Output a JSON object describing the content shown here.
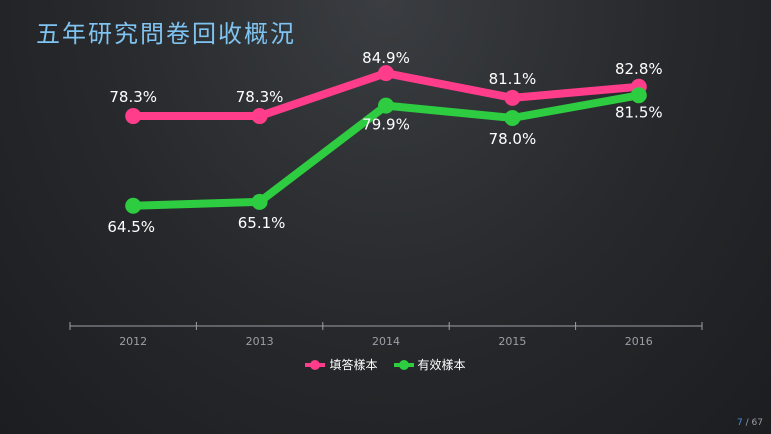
{
  "slide": {
    "title": "五年研究問卷回收概況",
    "page_current": "7",
    "page_total": "67"
  },
  "chart_data": {
    "type": "line",
    "title": "",
    "xlabel": "",
    "ylabel": "",
    "categories": [
      "2012",
      "2013",
      "2014",
      "2015",
      "2016"
    ],
    "series": [
      {
        "name": "填答樣本",
        "values": [
          78.3,
          78.3,
          84.9,
          81.1,
          82.8
        ],
        "labels": [
          "78.3%",
          "78.3%",
          "84.9%",
          "81.1%",
          "82.8%"
        ],
        "color": "#ff3d8b"
      },
      {
        "name": "有效樣本",
        "values": [
          64.5,
          65.1,
          79.9,
          78.0,
          81.5
        ],
        "labels": [
          "64.5%",
          "65.1%",
          "79.9%",
          "78.0%",
          "81.5%"
        ],
        "color": "#2ecc40"
      }
    ],
    "ylim": [
      50,
      90
    ],
    "grid": false,
    "legend": "bottom",
    "axis_color": "#9aa0a6",
    "tick_label_color": "#9aa0a6",
    "data_label_color": "#ffffff"
  }
}
